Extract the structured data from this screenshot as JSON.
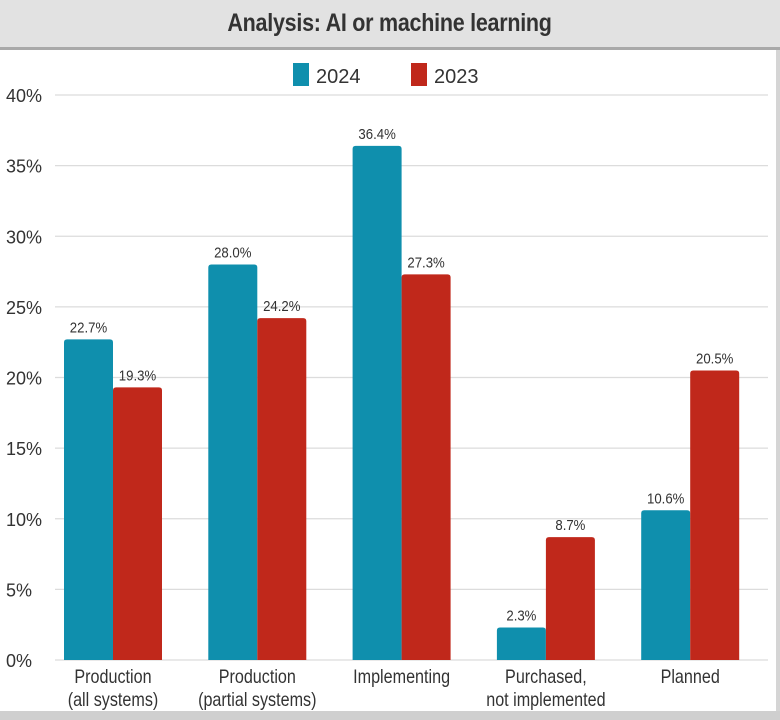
{
  "chart_data": {
    "type": "bar",
    "title": "Analysis: AI or machine learning",
    "categories": [
      [
        "Production",
        "(all systems)"
      ],
      [
        "Production",
        "(partial systems)"
      ],
      [
        "Implementing"
      ],
      [
        "Purchased,",
        "not implemented"
      ],
      [
        "Planned"
      ]
    ],
    "series": [
      {
        "name": "2024",
        "color": "#0f8fad",
        "values": [
          22.7,
          28.0,
          36.4,
          2.3,
          10.6
        ],
        "labels": [
          "22.7%",
          "28.0%",
          "36.4%",
          "2.3%",
          "10.6%"
        ]
      },
      {
        "name": "2023",
        "color": "#c0281b",
        "values": [
          19.3,
          24.2,
          27.3,
          8.7,
          20.5
        ],
        "labels": [
          "19.3%",
          "24.2%",
          "27.3%",
          "8.7%",
          "20.5%"
        ]
      }
    ],
    "ylim": [
      0,
      40
    ],
    "yticks": [
      0,
      5,
      10,
      15,
      20,
      25,
      30,
      35,
      40
    ],
    "ytick_labels": [
      "0%",
      "5%",
      "10%",
      "15%",
      "20%",
      "25%",
      "30%",
      "35%",
      "40%"
    ],
    "grid": true,
    "legend": "top-center",
    "xlabel": "",
    "ylabel": ""
  }
}
